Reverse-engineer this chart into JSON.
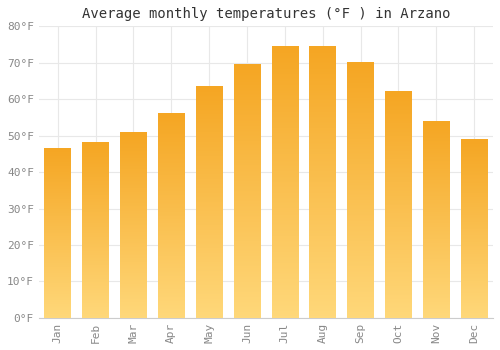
{
  "title": "Average monthly temperatures (°F ) in Arzano",
  "months": [
    "Jan",
    "Feb",
    "Mar",
    "Apr",
    "May",
    "Jun",
    "Jul",
    "Aug",
    "Sep",
    "Oct",
    "Nov",
    "Dec"
  ],
  "values": [
    46.5,
    48.0,
    51.0,
    56.0,
    63.5,
    69.5,
    74.5,
    74.5,
    70.0,
    62.0,
    54.0,
    49.0
  ],
  "bar_color_top": "#F5A623",
  "bar_color_bottom": "#FFD87A",
  "background_color": "#ffffff",
  "grid_color": "#e8e8e8",
  "tick_color": "#888888",
  "title_color": "#333333",
  "ylim": [
    0,
    80
  ],
  "ytick_step": 10,
  "title_fontsize": 10,
  "tick_fontsize": 8,
  "tick_font_family": "monospace",
  "bar_width": 0.7
}
